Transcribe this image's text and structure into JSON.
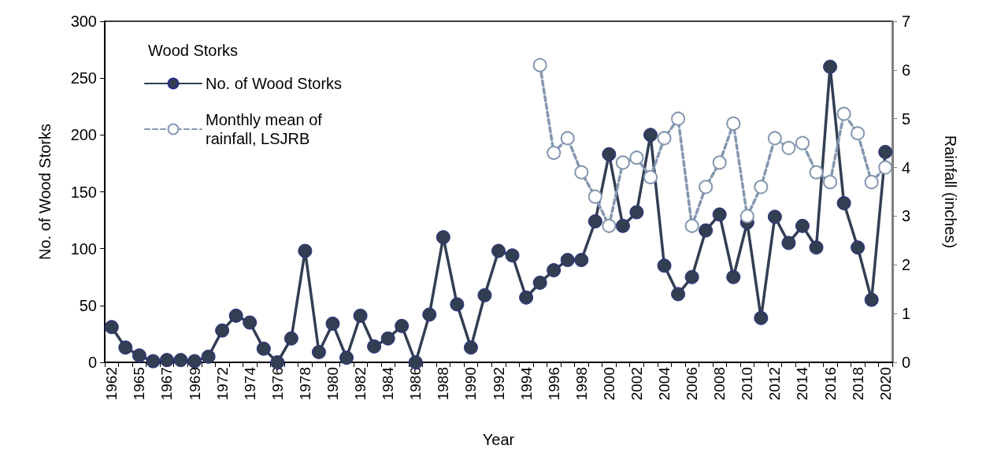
{
  "chart_data": {
    "type": "line",
    "xlabel": "Year",
    "ylabel": "No. of Wood Storks",
    "y2label": "Rainfall (inches)",
    "legend_title": "Wood Storks",
    "categories": [
      "1962",
      null,
      "1965",
      null,
      "1967",
      null,
      "1969",
      null,
      "1972",
      null,
      "1974",
      null,
      "1976",
      null,
      "1978",
      null,
      "1980",
      null,
      "1982",
      null,
      "1984",
      null,
      "1986",
      null,
      "1988",
      null,
      "1990",
      null,
      "1992",
      null,
      "1994",
      null,
      "1996",
      null,
      "1998",
      null,
      "2000",
      null,
      "2002",
      null,
      "2004",
      null,
      "2006",
      null,
      "2008",
      null,
      "2010",
      null,
      "2012",
      null,
      "2014",
      null,
      "2016",
      null,
      "2018",
      null,
      "2020"
    ],
    "series": [
      {
        "name": "No. of Wood Storks",
        "color": "#323e52",
        "marker": "circle",
        "line_style": "solid",
        "values": [
          31,
          13,
          6,
          1,
          2,
          2,
          1,
          5,
          28,
          41,
          35,
          12,
          0,
          21,
          98,
          9,
          34,
          4,
          41,
          14,
          21,
          32,
          0,
          42,
          110,
          51,
          13,
          59,
          98,
          94,
          57,
          70,
          81,
          90,
          90,
          124,
          183,
          120,
          132,
          200,
          85,
          60,
          75,
          116,
          130,
          75,
          123,
          39,
          128,
          105,
          120,
          101,
          260,
          140,
          101,
          55,
          185
        ]
      },
      {
        "name": "Monthly mean of rainfall, LSJRB",
        "color": "#8497b0",
        "marker": "circle",
        "line_style": "dashed",
        "axis": "y2",
        "values": [
          null,
          null,
          null,
          null,
          null,
          null,
          null,
          null,
          null,
          null,
          null,
          null,
          null,
          null,
          null,
          null,
          null,
          null,
          null,
          null,
          null,
          null,
          null,
          null,
          null,
          null,
          null,
          null,
          null,
          null,
          null,
          6.1,
          4.3,
          4.6,
          3.9,
          3.4,
          2.8,
          4.1,
          4.2,
          3.8,
          4.6,
          5.0,
          2.8,
          3.6,
          4.1,
          4.9,
          3.0,
          3.6,
          4.6,
          4.4,
          4.5,
          3.9,
          3.7,
          5.1,
          4.7,
          3.7,
          4.0
        ]
      }
    ],
    "ylim": [
      0,
      300
    ],
    "yticks": [
      0,
      50,
      100,
      150,
      200,
      250,
      300
    ],
    "y2lim": [
      0,
      7
    ],
    "y2ticks": [
      0,
      1,
      2,
      3,
      4,
      5,
      6,
      7
    ],
    "grid": false,
    "legend": "top left"
  }
}
